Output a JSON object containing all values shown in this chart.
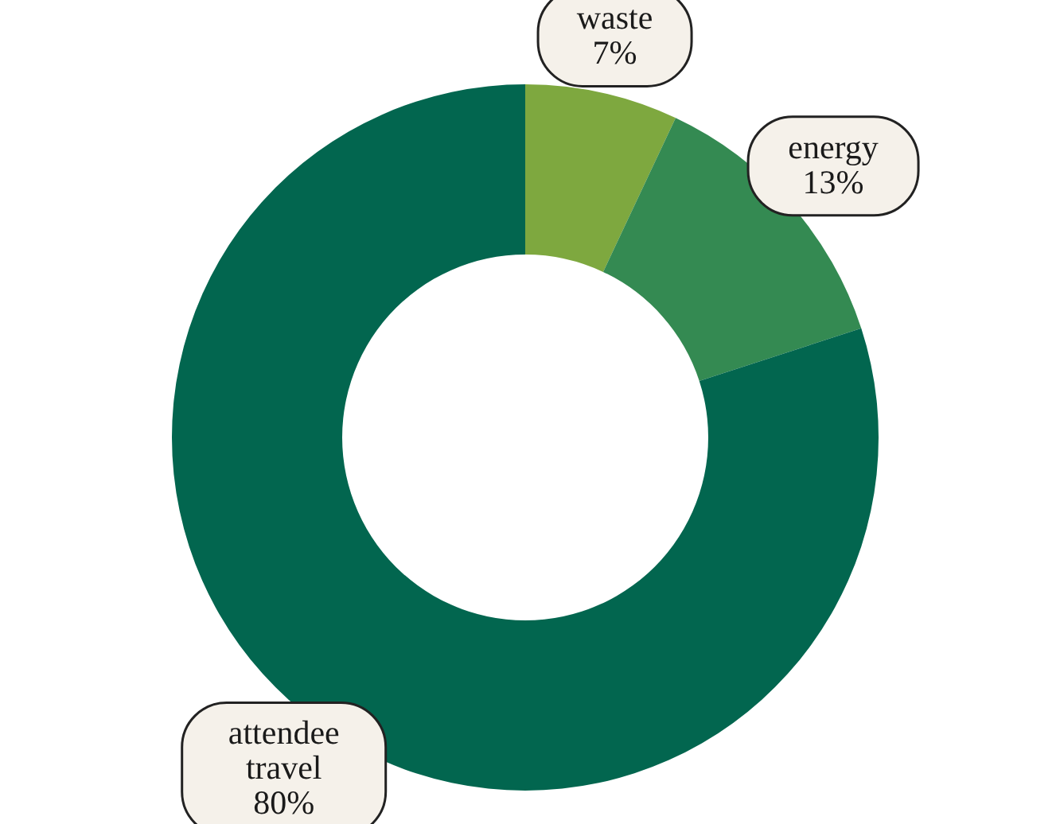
{
  "chart_data": {
    "type": "donut",
    "categories": [
      "waste",
      "energy",
      "attendee travel"
    ],
    "values": [
      7,
      13,
      80
    ],
    "colors": [
      "#7ea83f",
      "#348a52",
      "#02664f"
    ],
    "value_labels": [
      "7%",
      "13%",
      "80%"
    ]
  }
}
